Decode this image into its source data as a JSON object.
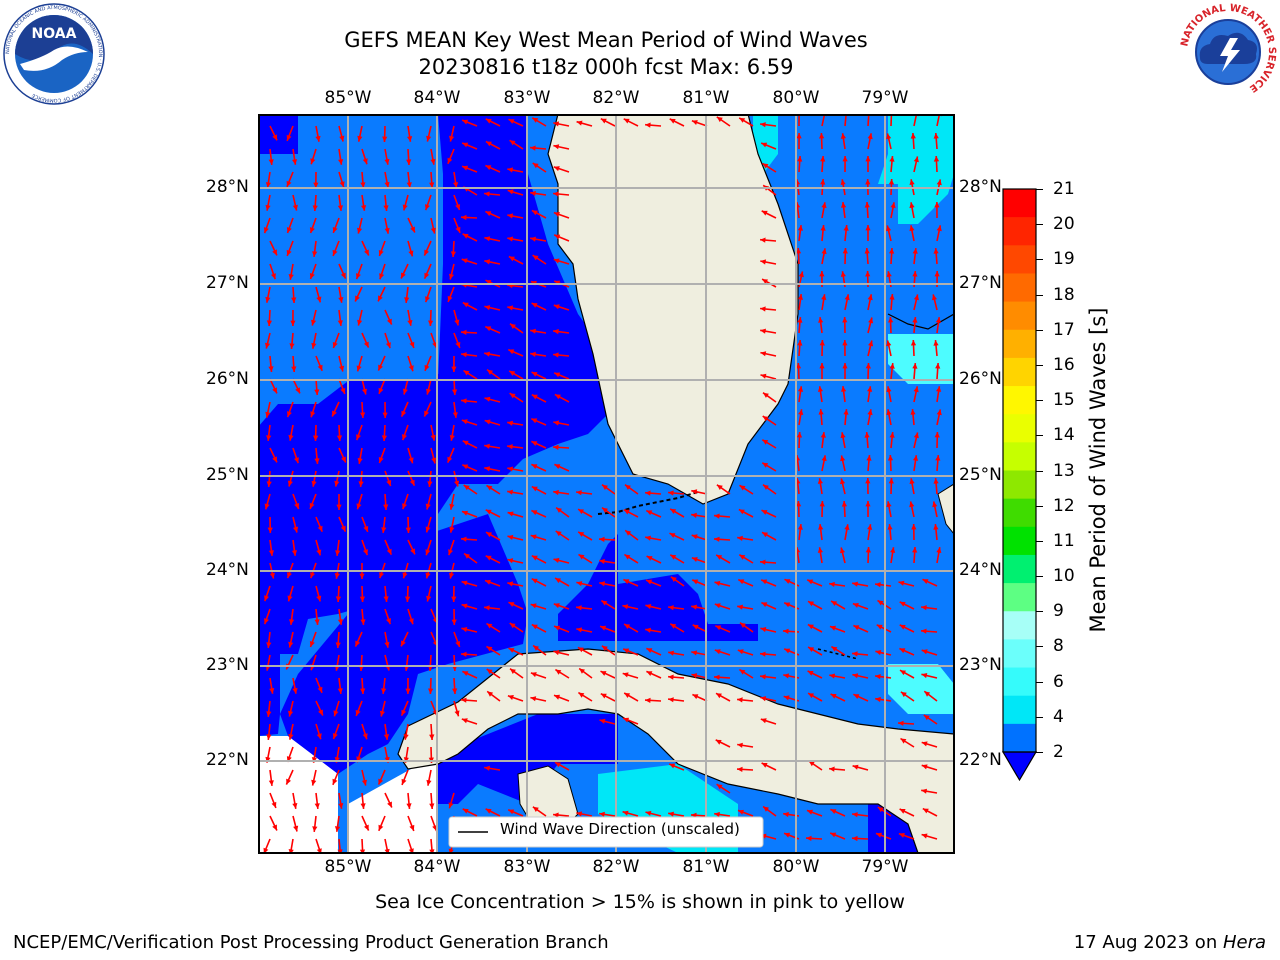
{
  "title": {
    "line1": "GEFS MEAN Key West Mean Period of Wind Waves",
    "line2": "20230816 t18z 000h fcst   Max: 6.59"
  },
  "map": {
    "lon_labels": [
      "85°W",
      "84°W",
      "83°W",
      "82°W",
      "81°W",
      "80°W",
      "79°W"
    ],
    "lat_labels": [
      "28°N",
      "27°N",
      "26°N",
      "25°N",
      "24°N",
      "23°N",
      "22°N"
    ],
    "legend_label": "Wind Wave Direction (unscaled)",
    "arrow_color": "#ff0000",
    "land_color": "#efeedf",
    "ocean_colors": {
      "dark": "#0000ff",
      "medium": "#0a7bff",
      "light": "#00e7f7",
      "pale": "#4dfcff"
    }
  },
  "colorbar": {
    "title": "Mean Period of Wind Waves [s]",
    "ticks": [
      "21",
      "20",
      "19",
      "18",
      "17",
      "16",
      "15",
      "14",
      "13",
      "12",
      "11",
      "10",
      "9",
      "8",
      "6",
      "4",
      "2"
    ],
    "colors": [
      "#ff0000",
      "#ff2500",
      "#ff4800",
      "#ff6a00",
      "#ff8c00",
      "#ffb000",
      "#ffd400",
      "#fff700",
      "#eaff00",
      "#c6ff00",
      "#8ee800",
      "#3fdc00",
      "#00e200",
      "#00f070",
      "#5dff83",
      "#a7fff7",
      "#6bfffb",
      "#35fbfb",
      "#00e7f7",
      "#0072ff"
    ]
  },
  "footer": {
    "sea_ice_note": "Sea Ice Concentration > 15% is shown in pink to yellow",
    "branch": "NCEP/EMC/Verification Post Processing Product Generation Branch",
    "date": "17 Aug 2023 on ",
    "host": "Hera"
  },
  "logos": {
    "noaa": "NOAA",
    "noaa_ring": "NATIONAL OCEANIC AND ATMOSPHERIC ADMINISTRATION · U.S. DEPARTMENT OF COMMERCE",
    "nws_ring": "NATIONAL WEATHER SERVICE"
  }
}
